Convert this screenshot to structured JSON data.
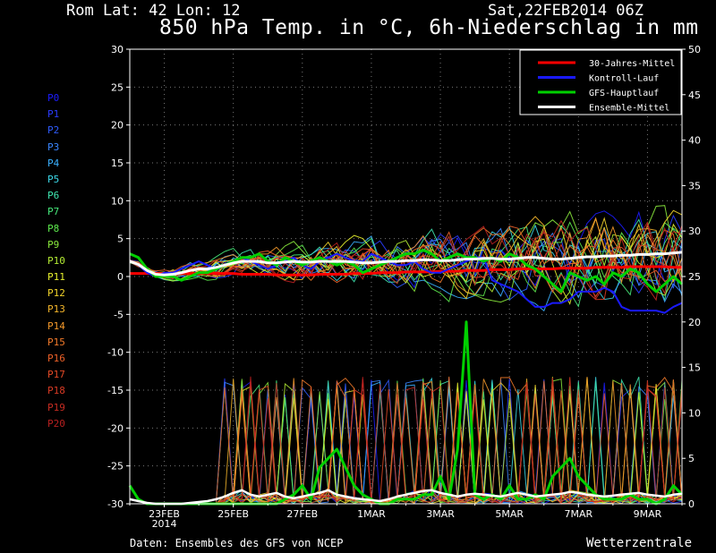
{
  "header": {
    "station": "Rom   Lat: 42 Lon: 12",
    "date": "Sat,22FEB2014 06Z",
    "title": "850 hPa Temp. in °C, 6h-Niederschlag in mm"
  },
  "footer": {
    "source": "Daten: Ensembles des GFS von NCEP",
    "brand": "Wetterzentrale"
  },
  "members": [
    {
      "label": "P0",
      "color": "#1c1cff"
    },
    {
      "label": "P1",
      "color": "#2a3cff"
    },
    {
      "label": "P2",
      "color": "#2f5cff"
    },
    {
      "label": "P3",
      "color": "#3a86ff"
    },
    {
      "label": "P4",
      "color": "#3ab0ff"
    },
    {
      "label": "P5",
      "color": "#3cd8e8"
    },
    {
      "label": "P6",
      "color": "#3fe6b0"
    },
    {
      "label": "P7",
      "color": "#46e87a"
    },
    {
      "label": "P8",
      "color": "#5ce84c"
    },
    {
      "label": "P9",
      "color": "#88e83c"
    },
    {
      "label": "P10",
      "color": "#b4ec34"
    },
    {
      "label": "P11",
      "color": "#e6f02c"
    },
    {
      "label": "P12",
      "color": "#f2d42a"
    },
    {
      "label": "P13",
      "color": "#f2b42a"
    },
    {
      "label": "P14",
      "color": "#f2982a"
    },
    {
      "label": "P15",
      "color": "#f27a2a"
    },
    {
      "label": "P16",
      "color": "#ec6028"
    },
    {
      "label": "P17",
      "color": "#e44a26"
    },
    {
      "label": "P18",
      "color": "#d83a24"
    },
    {
      "label": "P19",
      "color": "#c82c22"
    },
    {
      "label": "P20",
      "color": "#b82020"
    }
  ],
  "chart_data": {
    "type": "line",
    "y_left": {
      "range": [
        -30,
        30
      ],
      "ticks": [
        -30,
        -25,
        -20,
        -15,
        -10,
        -5,
        0,
        5,
        10,
        15,
        20,
        25,
        30
      ]
    },
    "y_right": {
      "range": [
        0,
        50
      ],
      "ticks": [
        0,
        5,
        10,
        15,
        20,
        25,
        30,
        35,
        40,
        45,
        50
      ]
    },
    "x_ticks": [
      "23FEB 2014",
      "25FEB",
      "27FEB",
      "1MAR",
      "3MAR",
      "5MAR",
      "7MAR",
      "9MAR"
    ],
    "grid": true,
    "legend_position": "top-right",
    "x_days": [
      0,
      0.25,
      0.5,
      0.75,
      1,
      1.25,
      1.5,
      1.75,
      2,
      2.25,
      2.5,
      2.75,
      3,
      3.25,
      3.5,
      3.75,
      4,
      4.25,
      4.5,
      4.75,
      5,
      5.25,
      5.5,
      5.75,
      6,
      6.25,
      6.5,
      6.75,
      7,
      7.25,
      7.5,
      7.75,
      8,
      8.25,
      8.5,
      8.75,
      9,
      9.25,
      9.5,
      9.75,
      10,
      10.25,
      10.5,
      10.75,
      11,
      11.25,
      11.5,
      11.75,
      12,
      12.25,
      12.5,
      12.75,
      13,
      13.25,
      13.5,
      13.75,
      14,
      14.25,
      14.5,
      14.75,
      15,
      15.25,
      15.5,
      15.75,
      16
    ],
    "series": [
      {
        "name": "30-Jahres-Mittel",
        "color": "#ff0000",
        "width": 3,
        "axis": "left",
        "values": [
          0.4,
          0.4,
          0.4,
          0.4,
          0.4,
          0.4,
          0.4,
          0.4,
          0.4,
          0.4,
          0.4,
          0.4,
          0.4,
          0.3,
          0.3,
          0.3,
          0.3,
          0.2,
          0.2,
          0.2,
          0.2,
          0.2,
          0.3,
          0.3,
          0.3,
          0.3,
          0.4,
          0.4,
          0.4,
          0.5,
          0.5,
          0.5,
          0.6,
          0.6,
          0.6,
          0.6,
          0.7,
          0.7,
          0.7,
          0.8,
          0.8,
          0.8,
          0.9,
          0.9,
          0.9,
          1.0,
          1.0,
          1.0,
          1.0,
          1.0,
          1.1,
          1.1,
          1.1,
          1.1,
          1.2,
          1.2,
          1.2,
          1.2,
          1.3,
          1.3,
          1.3,
          1.3,
          1.3,
          1.2,
          1.2
        ]
      },
      {
        "name": "Kontroll-Lauf",
        "color": "#1a1aff",
        "width": 2,
        "axis": "left",
        "values": [
          2,
          1.5,
          0.5,
          0,
          0.5,
          0.5,
          1,
          1.5,
          2,
          1.5,
          1,
          1.5,
          2,
          2.5,
          2,
          1.5,
          1,
          1.5,
          2,
          2.5,
          1.5,
          1,
          2,
          2.5,
          3,
          2.5,
          2,
          2,
          3,
          2.5,
          2,
          1.5,
          1.5,
          2,
          1,
          0.5,
          0.5,
          1,
          1.5,
          2,
          2.5,
          2.5,
          -0.5,
          -1,
          -1.5,
          -2,
          -3,
          -4,
          -4,
          -3.5,
          -3.5,
          -3,
          -2,
          -2,
          -2,
          -1.5,
          -2,
          -4,
          -4.5,
          -4.5,
          -4.5,
          -4.5,
          -4.8,
          -4,
          -3.5
        ]
      },
      {
        "name": "GFS-Hauptlauf",
        "color": "#00d000",
        "width": 3,
        "axis": "left",
        "values": [
          3,
          2.5,
          1,
          0,
          0,
          0,
          -0.5,
          0,
          0.5,
          0.5,
          1,
          1.5,
          2,
          2.5,
          2.5,
          3,
          2,
          1.5,
          2.5,
          2,
          1.5,
          2,
          2.5,
          2,
          1.5,
          2,
          1.5,
          0.5,
          1,
          1.5,
          2,
          2.5,
          3,
          3,
          3.5,
          3,
          2,
          2.5,
          3,
          2.5,
          2.5,
          2,
          2.5,
          2,
          3,
          2.5,
          1.5,
          1,
          0,
          -1,
          -2,
          0.5,
          0,
          -0.5,
          0,
          -1,
          0.5,
          0,
          1,
          0.5,
          -1,
          -2,
          -1,
          0,
          -1
        ]
      },
      {
        "name": "Ensemble-Mittel",
        "color": "#ffffff",
        "width": 3,
        "axis": "left",
        "values": [
          2,
          1.6,
          0.8,
          0.3,
          0.2,
          0.3,
          0.5,
          0.8,
          1,
          1,
          1.2,
          1.5,
          1.8,
          2,
          2,
          2,
          1.8,
          1.8,
          1.9,
          2,
          1.9,
          1.9,
          2,
          2,
          2,
          2,
          1.9,
          1.8,
          1.8,
          1.9,
          2,
          2,
          2.1,
          2.1,
          2.2,
          2.2,
          2.1,
          2.1,
          2.2,
          2.3,
          2.3,
          2.4,
          2.4,
          2.3,
          2.3,
          2.4,
          2.5,
          2.5,
          2.4,
          2.3,
          2.3,
          2.4,
          2.5,
          2.6,
          2.6,
          2.7,
          2.7,
          2.8,
          2.8,
          2.9,
          2.9,
          3,
          3,
          3.1,
          3.2
        ]
      },
      {
        "name": "GFS-Hauptlauf",
        "color": "#00d000",
        "width": 3,
        "axis": "right",
        "values": [
          2,
          0.5,
          0,
          0,
          0,
          0,
          0,
          0,
          0,
          0,
          0,
          0,
          0,
          0,
          0,
          0,
          0,
          0,
          0.5,
          1,
          2,
          0.5,
          4,
          5,
          6,
          4,
          2,
          1,
          0.5,
          0,
          0,
          0.5,
          0.5,
          0.5,
          1,
          1,
          3,
          0.5,
          6,
          20,
          1,
          0.5,
          1,
          0.5,
          2,
          0.5,
          0.5,
          1,
          0.5,
          3,
          4,
          5,
          3,
          2,
          1,
          0.5,
          0.5,
          0.5,
          1,
          0.5,
          0.5,
          0,
          0.5,
          2,
          1
        ]
      },
      {
        "name": "Ensemble-Mittel",
        "color": "#ffffff",
        "width": 2.5,
        "axis": "right",
        "values": [
          0.5,
          0.3,
          0.1,
          0,
          0,
          0,
          0,
          0.1,
          0.2,
          0.3,
          0.5,
          0.8,
          1.2,
          1.5,
          1.0,
          0.8,
          1.0,
          1.2,
          0.8,
          0.6,
          0.8,
          1.0,
          1.2,
          1.5,
          1.0,
          0.8,
          0.6,
          0.5,
          0.4,
          0.3,
          0.5,
          0.8,
          1.0,
          1.2,
          1.4,
          1.5,
          1.2,
          1.0,
          0.8,
          1.0,
          1.1,
          1.0,
          0.9,
          0.8,
          1.0,
          1.2,
          1.0,
          0.8,
          0.9,
          1.0,
          1.1,
          1.3,
          1.2,
          1.0,
          0.9,
          0.8,
          0.9,
          1.0,
          1.1,
          1.2,
          1.0,
          0.9,
          0.8,
          1.0,
          1.1
        ]
      }
    ]
  }
}
